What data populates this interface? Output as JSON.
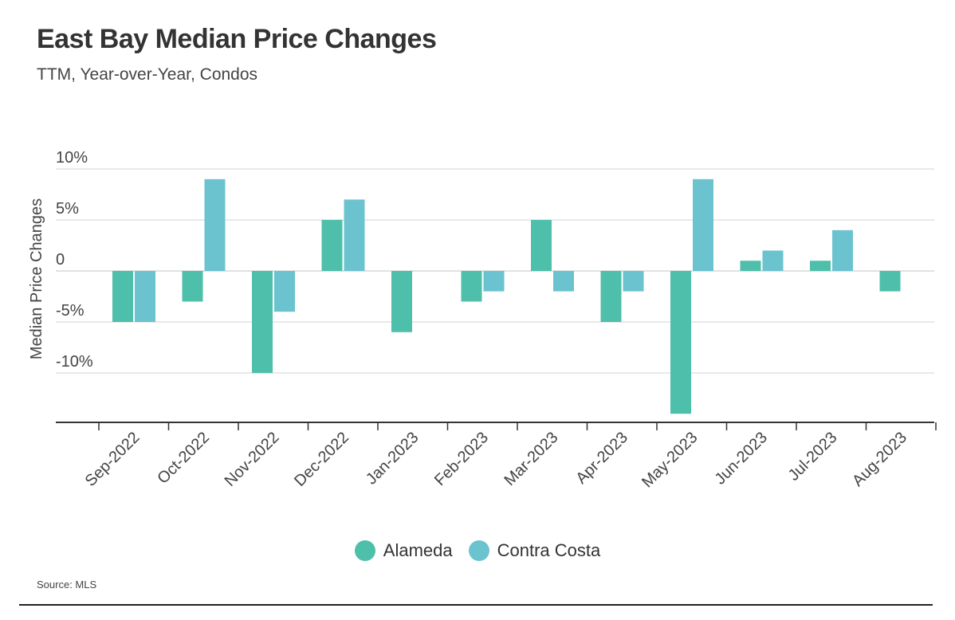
{
  "title": "East Bay Median Price Changes",
  "subtitle": "TTM, Year-over-Year, Condos",
  "source": "Source: MLS",
  "colors": {
    "alameda": "#4dbfaa",
    "contra_costa": "#6bc3cf",
    "grid": "#dcdcdc",
    "axis": "#333333"
  },
  "chart_data": {
    "type": "bar",
    "title": "East Bay Median Price Changes",
    "subtitle": "TTM, Year-over-Year, Condos",
    "xlabel": "",
    "ylabel": "Median Price Changes",
    "ylim": [
      -14.5,
      10
    ],
    "yticks": [
      10,
      5,
      0,
      -5,
      -10
    ],
    "ytick_labels": [
      "10%",
      "5%",
      "0",
      "-5%",
      "-10%"
    ],
    "grid": true,
    "legend_position": "bottom",
    "categories": [
      "Sep-2022",
      "Oct-2022",
      "Nov-2022",
      "Dec-2022",
      "Jan-2023",
      "Feb-2023",
      "Mar-2023",
      "Apr-2023",
      "May-2023",
      "Jun-2023",
      "Jul-2023",
      "Aug-2023"
    ],
    "series": [
      {
        "name": "Alameda",
        "color": "#4dbfaa",
        "values": [
          -5,
          -3,
          -10,
          5,
          -6,
          -3,
          5,
          -5,
          -14,
          1,
          1,
          -2
        ]
      },
      {
        "name": "Contra Costa",
        "color": "#6bc3cf",
        "values": [
          -5,
          9,
          -4,
          7,
          null,
          -2,
          -2,
          -2,
          9,
          2,
          4,
          null
        ]
      }
    ]
  }
}
